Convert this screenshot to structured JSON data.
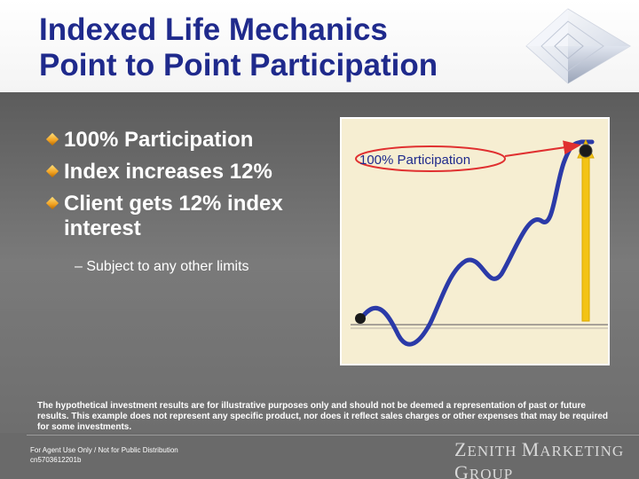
{
  "slide": {
    "title_line1": "Indexed Life Mechanics",
    "title_line2": "Point to Point Participation",
    "bullets": [
      {
        "text": "100% Participation"
      },
      {
        "text": "Index increases 12%"
      },
      {
        "text": "Client gets 12% index interest"
      }
    ],
    "sub_bullet": "– Subject to any other limits",
    "chart_label": "100% Participation",
    "disclaimer": "The hypothetical investment results are for illustrative purposes only and should not be deemed a representation of past or future results. This example does not represent any specific product, nor does it reflect sales charges or other expenses that may be required for some investments.",
    "footer": {
      "line1": "For Agent Use Only / Not for Public Distribution",
      "line2": "cn5703612201b"
    },
    "brand": {
      "z": "Z",
      "enith": "ENITH",
      "m": "M",
      "arketing": "ARKETING",
      "g": "G",
      "roup": "ROUP"
    }
  },
  "colors": {
    "title": "#1f2a8c",
    "curve": "#2b3aa8",
    "arrow": "#e03030",
    "bar": "#f3c316",
    "chart_bg": "#f6eed2"
  },
  "icons": [
    "diamond-bullet-icon",
    "logo-pyramid-icon"
  ]
}
